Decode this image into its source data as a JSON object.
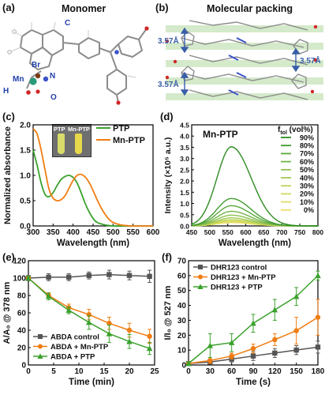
{
  "panels": {
    "a": {
      "label": "(a)",
      "title": "Monomer",
      "atoms": {
        "C": "C",
        "Br": "Br",
        "Mn": "Mn",
        "N": "N",
        "H": "H",
        "O": "O"
      },
      "colors": {
        "Mn": "#2a9a7a",
        "Br": "#7a3a12",
        "N": "#3a52c8",
        "O": "#d12626",
        "C": "#8c8c8c",
        "H": "#e8e8e8"
      }
    },
    "b": {
      "label": "(b)",
      "title": "Molecular packing",
      "distances": [
        "3.57Å",
        "3.57Å",
        "3.57Å"
      ],
      "stripe_color": "#cfe8c4"
    },
    "c": {
      "label": "(c)",
      "photo_labels": [
        "PTP",
        "Mn-PTP"
      ]
    },
    "d": {
      "label": "(d)",
      "inset_title": "Mn-PTP",
      "legend_title": "f",
      "legend_title_sub": "tol",
      "legend_title_unit": " (vol%)"
    },
    "e": {
      "label": "(e)"
    },
    "f": {
      "label": "(f)"
    }
  },
  "chart_data": [
    {
      "id": "c",
      "type": "line",
      "xlabel": "Wavelength (nm)",
      "ylabel": "Normalized absorbance",
      "xlim": [
        300,
        600
      ],
      "ylim": [
        0,
        2.0
      ],
      "xticks": [
        300,
        350,
        400,
        450,
        500,
        550,
        600
      ],
      "yticks": [
        0.0,
        0.5,
        1.0,
        1.5,
        2.0
      ],
      "ytick_labels": [
        "0.0",
        "0.5",
        "1.0",
        "1.5",
        "2.0"
      ],
      "series": [
        {
          "name": "PTP",
          "color": "#3aa12c",
          "x": [
            300,
            310,
            320,
            330,
            340,
            350,
            360,
            370,
            380,
            390,
            400,
            410,
            420,
            430,
            440,
            450,
            460,
            480,
            500,
            550,
            600
          ],
          "y": [
            1.5,
            1.2,
            0.85,
            0.62,
            0.58,
            0.66,
            0.8,
            0.92,
            0.98,
            1.0,
            0.96,
            0.85,
            0.66,
            0.45,
            0.28,
            0.15,
            0.07,
            0.02,
            0.0,
            0.0,
            0.0
          ]
        },
        {
          "name": "Mn-PTP",
          "color": "#f07d12",
          "x": [
            300,
            310,
            320,
            330,
            340,
            350,
            360,
            370,
            380,
            390,
            400,
            410,
            420,
            430,
            440,
            450,
            460,
            470,
            480,
            490,
            500,
            520,
            550,
            600
          ],
          "y": [
            1.92,
            1.82,
            1.5,
            1.1,
            0.72,
            0.55,
            0.5,
            0.52,
            0.6,
            0.75,
            0.9,
            1.0,
            1.02,
            0.97,
            0.86,
            0.7,
            0.52,
            0.36,
            0.23,
            0.13,
            0.07,
            0.02,
            0.0,
            0.0
          ]
        }
      ]
    },
    {
      "id": "d",
      "type": "line",
      "xlabel": "Wavelength (nm)",
      "ylabel": "Intensity (×10⁵ a.u.)",
      "xlim": [
        450,
        800
      ],
      "ylim": [
        0,
        4.5
      ],
      "xticks": [
        450,
        500,
        550,
        600,
        650,
        700,
        750,
        800
      ],
      "yticks": [
        0.0,
        0.5,
        1.0,
        1.5,
        2.0,
        2.5,
        3.0,
        3.5,
        4.0,
        4.5
      ],
      "ytick_labels": [
        "0.0",
        "0.5",
        "1.0",
        "1.5",
        "2.0",
        "2.5",
        "3.0",
        "3.5",
        "4.0",
        "4.5"
      ],
      "peak_nm": 560,
      "sigma_left": 40,
      "sigma_right": 55,
      "series": [
        {
          "name": "90%",
          "color": "#2e8b22",
          "peak": 3.52
        },
        {
          "name": "80%",
          "color": "#3f9b2e",
          "peak": 1.22
        },
        {
          "name": "70%",
          "color": "#5aa83c",
          "peak": 0.9
        },
        {
          "name": "60%",
          "color": "#75b548",
          "peak": 0.65
        },
        {
          "name": "50%",
          "color": "#8ec050",
          "peak": 0.48
        },
        {
          "name": "40%",
          "color": "#a6ca55",
          "peak": 0.36
        },
        {
          "name": "30%",
          "color": "#bdd45a",
          "peak": 0.28
        },
        {
          "name": "20%",
          "color": "#d0dc5e",
          "peak": 0.22
        },
        {
          "name": "10%",
          "color": "#e0de62",
          "peak": 0.18
        },
        {
          "name": "0%",
          "color": "#f0e066",
          "peak": 0.15
        }
      ]
    },
    {
      "id": "e",
      "type": "line",
      "xlabel": "Time (min)",
      "ylabel": "A/A₀ @ 378 nm",
      "xlim": [
        0,
        25
      ],
      "ylim": [
        0,
        120
      ],
      "xticks": [
        0,
        5,
        10,
        15,
        20,
        25
      ],
      "yticks": [
        0,
        20,
        40,
        60,
        80,
        100,
        120
      ],
      "series": [
        {
          "name": "ABDA control",
          "color": "#555555",
          "marker": "square",
          "x": [
            0,
            4,
            8,
            12,
            16,
            20,
            24
          ],
          "y": [
            100,
            101,
            101,
            103,
            104,
            103,
            102
          ],
          "err": [
            3,
            4,
            4,
            4,
            5,
            5,
            7
          ]
        },
        {
          "name": "ABDA + Mn-PTP",
          "color": "#f07d12",
          "marker": "circle",
          "x": [
            0,
            4,
            8,
            12,
            16,
            20,
            24
          ],
          "y": [
            100,
            80,
            66,
            58,
            48,
            40,
            33
          ],
          "err": [
            2,
            3,
            4,
            6,
            7,
            8,
            8
          ]
        },
        {
          "name": "ABDA + PTP",
          "color": "#3aa12c",
          "marker": "triangle",
          "x": [
            0,
            4,
            8,
            12,
            16,
            20,
            24
          ],
          "y": [
            100,
            79,
            63,
            49,
            36,
            27,
            19
          ],
          "err": [
            2,
            4,
            4,
            8,
            10,
            8,
            7
          ]
        }
      ]
    },
    {
      "id": "f",
      "type": "line",
      "xlabel": "Time (s)",
      "ylabel": "I/I₀ @ 527 nm",
      "xlim": [
        0,
        180
      ],
      "ylim": [
        0,
        70
      ],
      "xticks": [
        0,
        30,
        60,
        90,
        120,
        150,
        180
      ],
      "yticks": [
        0,
        10,
        20,
        30,
        40,
        50,
        60,
        70
      ],
      "series": [
        {
          "name": "DHR123 control",
          "color": "#555555",
          "marker": "square",
          "x": [
            0,
            30,
            60,
            90,
            120,
            150,
            180
          ],
          "y": [
            1,
            2,
            4,
            6,
            8,
            10,
            12
          ],
          "err": [
            1,
            1,
            2,
            3,
            3,
            3,
            4
          ]
        },
        {
          "name": "DHR123 + Mn-PTP",
          "color": "#f07d12",
          "marker": "circle",
          "x": [
            0,
            30,
            60,
            90,
            120,
            150,
            180
          ],
          "y": [
            1,
            3,
            6,
            11,
            17,
            23,
            32
          ],
          "err": [
            1,
            2,
            2,
            3,
            4,
            9,
            12
          ]
        },
        {
          "name": "DHR123 + PTP",
          "color": "#3aa12c",
          "marker": "triangle",
          "x": [
            0,
            30,
            60,
            90,
            120,
            150,
            180
          ],
          "y": [
            1,
            13,
            15,
            28,
            37,
            46,
            60
          ],
          "err": [
            1,
            8,
            6,
            6,
            7,
            6,
            3
          ]
        }
      ]
    }
  ]
}
